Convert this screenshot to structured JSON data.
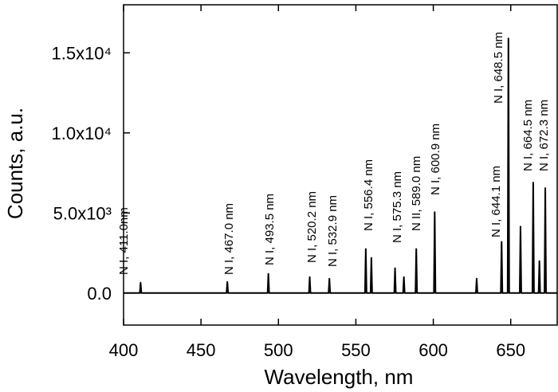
{
  "chart_data": {
    "type": "line",
    "xlabel": "Wavelength, nm",
    "ylabel": "Counts, a.u.",
    "xlim": [
      400,
      680
    ],
    "ylim": [
      -2000,
      18000
    ],
    "xticks": [
      400,
      450,
      500,
      550,
      600,
      650
    ],
    "yticks": [
      {
        "value": 0,
        "label": "0.0"
      },
      {
        "value": 5000,
        "label": "5.0x10³"
      },
      {
        "value": 10000,
        "label": "1.0x10⁴"
      },
      {
        "value": 15000,
        "label": "1.5x10⁴"
      }
    ],
    "annotations": [
      "N I, 411.0nm",
      "N I, 467.0 nm",
      "N I, 493.5 nm",
      "N I, 520.2 nm",
      "N I, 532.9 nm",
      "N I, 556.4 nm",
      "N I, 575.3 nm",
      "N II, 589.0 nm",
      "N I, 600.9 nm",
      "N I, 644.1 nm",
      "N I, 648.5 nm",
      "N I, 664.5 nm",
      "N I, 672.3 nm"
    ],
    "series": [
      {
        "color": "#000000",
        "x": [
          400,
          410.5,
          411,
          411.5,
          466.5,
          467,
          467.5,
          493,
          493.5,
          494,
          519.7,
          520.2,
          520.7,
          532.4,
          532.9,
          533.4,
          555.9,
          556.4,
          556.9,
          559.5,
          560,
          560.5,
          574.8,
          575.3,
          575.8,
          580.5,
          581,
          581.5,
          588.5,
          589,
          589.5,
          600.4,
          600.9,
          601.4,
          627.5,
          628,
          628.5,
          643.6,
          644.1,
          644.6,
          648,
          648.5,
          649,
          655.8,
          656.3,
          656.8,
          664,
          664.5,
          665,
          668,
          668.5,
          669,
          671.8,
          672.3,
          672.8,
          680
        ],
        "values": [
          0,
          0,
          650,
          0,
          0,
          700,
          0,
          0,
          1200,
          0,
          0,
          1000,
          0,
          0,
          900,
          0,
          0,
          2750,
          0,
          0,
          2200,
          0,
          0,
          1550,
          0,
          0,
          1000,
          0,
          0,
          2750,
          0,
          0,
          5050,
          0,
          0,
          900,
          0,
          0,
          3200,
          0,
          0,
          15900,
          0,
          0,
          4150,
          0,
          0,
          6900,
          0,
          0,
          2000,
          0,
          0,
          6550,
          0,
          0
        ]
      }
    ]
  }
}
